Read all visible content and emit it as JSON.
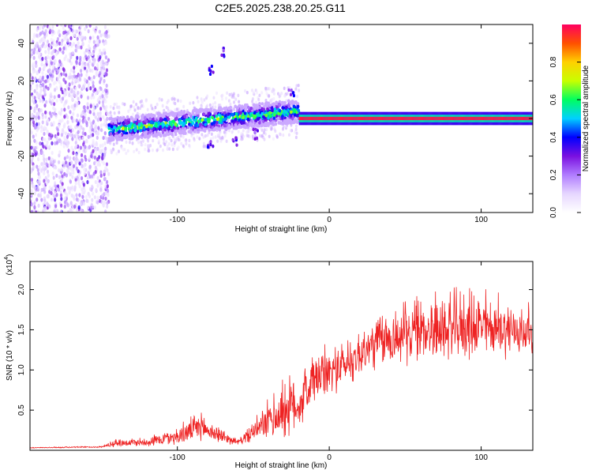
{
  "figure_title": "C2E5.2025.238.20.25.G11",
  "chart_data": [
    {
      "type": "heatmap",
      "title": "C2E5.2025.238.20.25.G11",
      "xlabel": "Height of straight line (km)",
      "ylabel": "Frequency (Hz)",
      "xlim": [
        -197,
        134
      ],
      "ylim": [
        -50,
        50
      ],
      "x_ticks": [
        -100,
        0,
        100
      ],
      "x_tick_labels": [
        "-100",
        "0",
        "100"
      ],
      "y_ticks": [
        -40,
        -20,
        0,
        20,
        40
      ],
      "y_tick_labels": [
        "-40",
        "-20",
        "0",
        "20",
        "40"
      ],
      "colorbar": {
        "label": "Normalized spectral amplitude",
        "range": [
          0.0,
          1.0
        ],
        "ticks": [
          0.0,
          0.2,
          0.4,
          0.6,
          0.8
        ],
        "tick_labels": [
          "0.0",
          "0.2",
          "0.4",
          "0.6",
          "0.8"
        ],
        "colors": [
          "#ffffff",
          "#e6d6ff",
          "#b07cff",
          "#7a10e0",
          "#0000ff",
          "#00d0ff",
          "#00ff60",
          "#c8ff00",
          "#ffd000",
          "#ff5000",
          "#ff0060"
        ]
      },
      "description_points": [
        {
          "x_range": [
            -197,
            -145
          ],
          "freq_center": 0,
          "spread": 50,
          "amplitude": 0.2
        },
        {
          "x_range": [
            -145,
            -20
          ],
          "freq_center_start": -6,
          "freq_center_end": 4,
          "spread": 6,
          "amplitude": 0.5
        },
        {
          "x_range": [
            -20,
            134
          ],
          "freq_center": 0,
          "spread": 3,
          "amplitude": 0.95
        }
      ]
    },
    {
      "type": "line",
      "xlabel": "Height of straight line (km)",
      "ylabel": "SNR (10 * v/v)",
      "y_multiplier_label": "(x10",
      "y_multiplier_exp": "4",
      "xlim": [
        -197,
        134
      ],
      "ylim": [
        0,
        23500
      ],
      "x_ticks": [
        -100,
        0,
        100
      ],
      "x_tick_labels": [
        "-100",
        "0",
        "100"
      ],
      "y_ticks": [
        5000,
        10000,
        15000,
        20000
      ],
      "y_tick_labels": [
        "0.5",
        "1.0",
        "1.5",
        "2.0"
      ],
      "series": [
        {
          "name": "SNR",
          "color": "#ee2222",
          "envelope": [
            {
              "x": -197,
              "base": 300,
              "amp": 100
            },
            {
              "x": -150,
              "base": 400,
              "amp": 150
            },
            {
              "x": -140,
              "base": 800,
              "amp": 900
            },
            {
              "x": -120,
              "base": 900,
              "amp": 1000
            },
            {
              "x": -100,
              "base": 1500,
              "amp": 2000
            },
            {
              "x": -85,
              "base": 2500,
              "amp": 3000
            },
            {
              "x": -70,
              "base": 1500,
              "amp": 1500
            },
            {
              "x": -60,
              "base": 900,
              "amp": 600
            },
            {
              "x": -45,
              "base": 2500,
              "amp": 3000
            },
            {
              "x": -30,
              "base": 4000,
              "amp": 7000
            },
            {
              "x": -20,
              "base": 5000,
              "amp": 6000
            },
            {
              "x": -10,
              "base": 8000,
              "amp": 6000
            },
            {
              "x": 10,
              "base": 10000,
              "amp": 5000
            },
            {
              "x": 30,
              "base": 12500,
              "amp": 6000
            },
            {
              "x": 60,
              "base": 14000,
              "amp": 7000
            },
            {
              "x": 100,
              "base": 14500,
              "amp": 7500
            },
            {
              "x": 134,
              "base": 14000,
              "amp": 5000
            }
          ]
        }
      ]
    }
  ]
}
